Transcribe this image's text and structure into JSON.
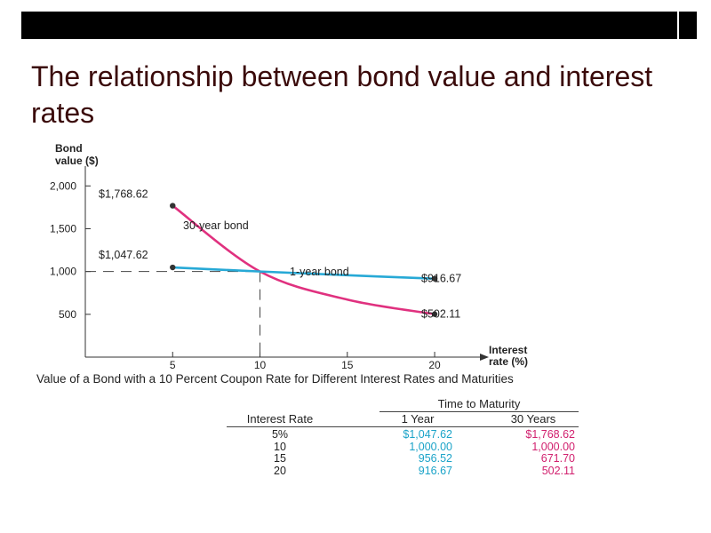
{
  "slide": {
    "title": "The relationship between bond value and interest rates"
  },
  "chart_data": {
    "type": "line",
    "ylabel": "Bond value ($)",
    "xlabel": "Interest rate (%)",
    "xlim": [
      0,
      23
    ],
    "ylim": [
      0,
      2200
    ],
    "x_ticks": [
      5,
      10,
      15,
      20
    ],
    "y_ticks": [
      500,
      1000,
      1500,
      2000
    ],
    "y_tick_labels": [
      "500",
      "1,000",
      "1,500",
      "2,000"
    ],
    "series": [
      {
        "name": "30-year bond",
        "color": "#e0317f",
        "x": [
          5,
          10,
          15,
          20
        ],
        "values": [
          1768.62,
          1000.0,
          671.7,
          502.11
        ]
      },
      {
        "name": "1-year bond",
        "color": "#27a9d6",
        "x": [
          5,
          10,
          15,
          20
        ],
        "values": [
          1047.62,
          1000.0,
          956.52,
          916.67
        ]
      }
    ],
    "annotations": {
      "start_30y": "$1,768.62",
      "start_1y": "$1,047.62",
      "end_1y": "$916.67",
      "end_30y": "$502.11"
    },
    "reference_lines": {
      "x": 10,
      "y": 1000,
      "style": "dashed"
    },
    "caption": "Value of a Bond with a 10 Percent Coupon Rate for Different Interest Rates and Maturities"
  },
  "table": {
    "group_header": "Time to Maturity",
    "columns": [
      "Interest Rate",
      "1 Year",
      "30 Years"
    ],
    "rows": [
      {
        "rate": "5%",
        "one_year": "$1,047.62",
        "thirty_years": "$1,768.62"
      },
      {
        "rate": "10",
        "one_year": "1,000.00",
        "thirty_years": "1,000.00"
      },
      {
        "rate": "15",
        "one_year": "956.52",
        "thirty_years": "671.70"
      },
      {
        "rate": "20",
        "one_year": "916.67",
        "thirty_years": "502.11"
      }
    ],
    "colors": {
      "one_year": "#1aa3c8",
      "thirty_years": "#d1206e"
    }
  }
}
